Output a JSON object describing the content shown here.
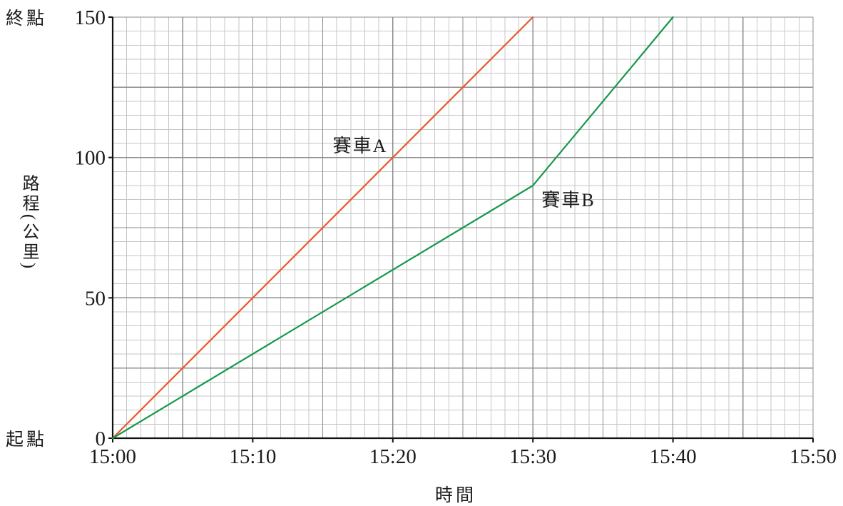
{
  "chart_data": {
    "type": "line",
    "xlabel": "時間",
    "ylabel": "路程(公里)",
    "x_ticks": [
      "15:00",
      "15:10",
      "15:20",
      "15:30",
      "15:40",
      "15:50"
    ],
    "y_ticks": [
      0,
      50,
      100,
      150
    ],
    "xlim": [
      "15:00",
      "15:50"
    ],
    "ylim": [
      0,
      150
    ],
    "grid": true,
    "y_end_labels": {
      "finish": "終點",
      "start": "起點"
    },
    "series": [
      {
        "name": "賽車A",
        "color": "#e9572b",
        "points": [
          [
            "15:00",
            0
          ],
          [
            "15:30",
            150
          ]
        ]
      },
      {
        "name": "賽車B",
        "color": "#17984b",
        "points": [
          [
            "15:00",
            0
          ],
          [
            "15:30",
            90
          ],
          [
            "15:40",
            150
          ]
        ]
      }
    ]
  }
}
